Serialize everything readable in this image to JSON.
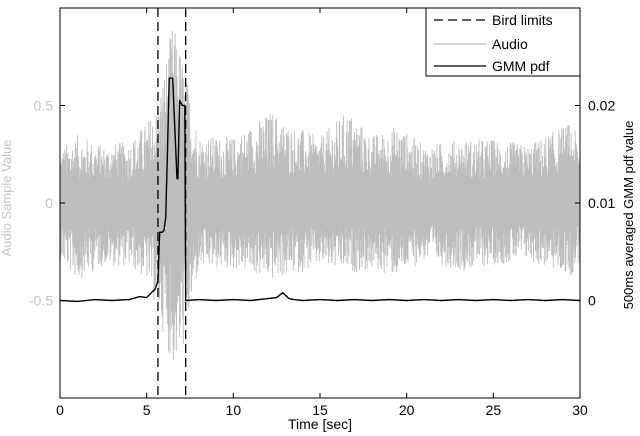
{
  "chart_data": {
    "type": "line",
    "xlabel": "Time [sec]",
    "ylabel_left": "Audio Sample Value",
    "ylabel_right": "500ms averaged GMM pdf value",
    "xlim": [
      0,
      30
    ],
    "ylim_left": [
      -1,
      1
    ],
    "ylim_right": [
      -0.01,
      0.03
    ],
    "x_ticks": [
      "0",
      "5",
      "10",
      "15",
      "20",
      "25",
      "30"
    ],
    "y_ticks_left": [
      "0.5",
      "0",
      "-0.5"
    ],
    "y_ticks_right": [
      "0.02",
      "0.01",
      "0"
    ],
    "legend_position": "top-right",
    "legend": [
      {
        "label": "Bird limits",
        "style": "dashed",
        "color": "#000000"
      },
      {
        "label": "Audio",
        "style": "solid",
        "color": "#bdbdbd"
      },
      {
        "label": "GMM pdf",
        "style": "solid",
        "color": "#000000"
      }
    ],
    "series": [
      {
        "name": "Bird limits",
        "axis": "left",
        "vertical_lines_x": [
          5.65,
          7.25
        ]
      },
      {
        "name": "GMM pdf",
        "axis": "right",
        "x": [
          0.0,
          1.0,
          2.0,
          3.0,
          4.0,
          4.6,
          5.0,
          5.5,
          5.65,
          5.75,
          5.8,
          5.9,
          6.0,
          6.1,
          6.15,
          6.2,
          6.3,
          6.35,
          6.5,
          6.75,
          6.8,
          6.9,
          7.0,
          7.05,
          7.2,
          7.25,
          7.3,
          8.0,
          9.0,
          10.0,
          11.0,
          12.0,
          12.5,
          12.85,
          13.2,
          13.5,
          14.0,
          15.0,
          16.0,
          17.0,
          18.0,
          19.0,
          20.0,
          21.0,
          22.0,
          23.0,
          24.0,
          25.0,
          26.0,
          27.0,
          28.0,
          29.0,
          30.0
        ],
        "y": [
          0.0,
          -0.0001,
          0.0001,
          0.0,
          0.0001,
          0.0004,
          0.0003,
          0.0012,
          0.002,
          0.007,
          0.007,
          0.007,
          0.0072,
          0.0085,
          0.012,
          0.0152,
          0.0228,
          0.0228,
          0.0228,
          0.0125,
          0.0125,
          0.0205,
          0.0202,
          0.02,
          0.02,
          0.0,
          0.0,
          0.0001,
          0.0,
          0.0001,
          0.0,
          0.0002,
          0.0003,
          0.0008,
          0.0002,
          0.0001,
          0.0,
          0.0001,
          0.0,
          0.0001,
          0.0,
          0.0001,
          0.0,
          0.0001,
          0.0,
          0.0001,
          0.0,
          0.0001,
          0.0,
          0.0001,
          0.0,
          0.0001,
          0.0
        ]
      },
      {
        "name": "Audio",
        "axis": "left",
        "x": [
          0,
          1.0,
          2.5,
          4.0,
          5.0,
          5.6,
          6.5,
          7.0,
          8.0,
          10.0,
          12.3,
          12.9,
          15.0,
          16.6,
          18.0,
          19.5,
          21.0,
          23.3,
          25.0,
          27.0,
          29.5,
          30.0
        ],
        "envelope_top": [
          0.28,
          0.35,
          0.3,
          0.32,
          0.42,
          0.5,
          0.93,
          0.78,
          0.35,
          0.34,
          0.48,
          0.42,
          0.34,
          0.48,
          0.35,
          0.4,
          0.3,
          0.33,
          0.33,
          0.3,
          0.42,
          0.3
        ],
        "envelope_bottom": [
          -0.3,
          -0.4,
          -0.32,
          -0.33,
          -0.4,
          -0.55,
          -0.85,
          -0.8,
          -0.35,
          -0.34,
          -0.4,
          -0.38,
          -0.33,
          -0.36,
          -0.35,
          -0.38,
          -0.3,
          -0.35,
          -0.32,
          -0.3,
          -0.38,
          -0.3
        ]
      }
    ]
  }
}
